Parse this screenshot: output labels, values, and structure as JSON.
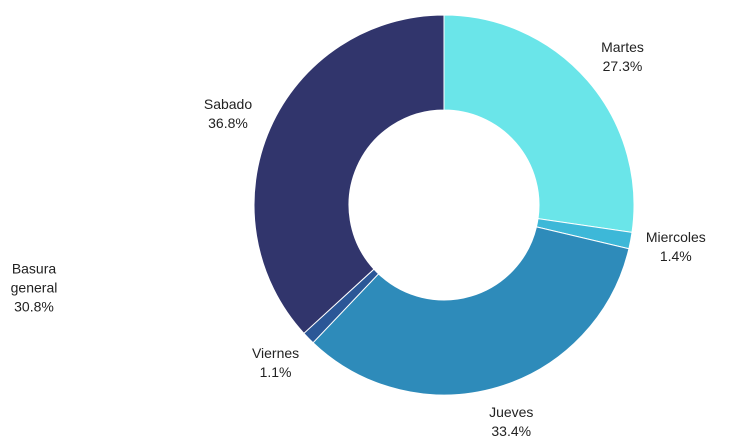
{
  "chart_data": {
    "type": "donut",
    "categories": [
      "Martes",
      "Miercoles",
      "Jueves",
      "Viernes",
      "Sabado"
    ],
    "values": [
      27.3,
      1.4,
      33.4,
      1.1,
      36.8
    ],
    "value_labels": [
      "27.3%",
      "1.4%",
      "33.4%",
      "1.1%",
      "36.8%"
    ],
    "colors": [
      "#6ae5e9",
      "#3db8d8",
      "#2e8bba",
      "#2b5797",
      "#31356c"
    ],
    "annotations": [
      {
        "label": "Basura general",
        "value": 30.8,
        "value_label": "30.8%"
      }
    ]
  }
}
